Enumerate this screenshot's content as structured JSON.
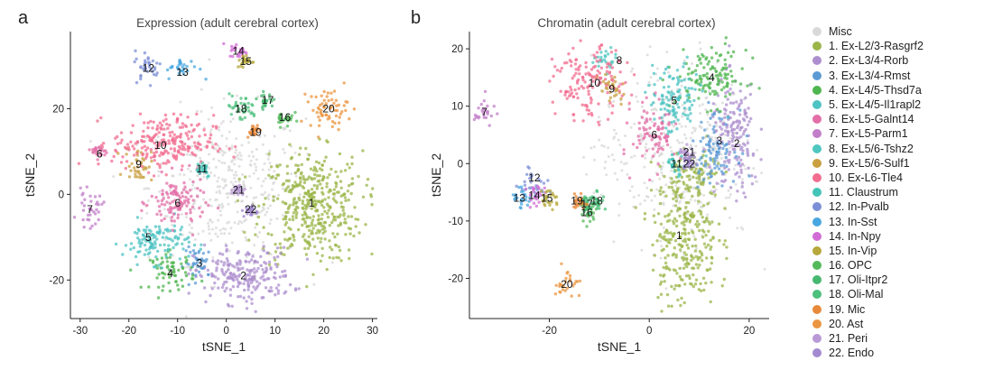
{
  "panels": [
    {
      "letter": "a",
      "title": "Expression (adult cerebral cortex)"
    },
    {
      "letter": "b",
      "title": "Chromatin (adult cerebral cortex)"
    }
  ],
  "legend": [
    {
      "label": "Misc",
      "color": "#d9d9d9"
    },
    {
      "label": "1. Ex-L2/3-Rasgrf2",
      "color": "#9bb548"
    },
    {
      "label": "2. Ex-L3/4-Rorb",
      "color": "#ad8fcf"
    },
    {
      "label": "3. Ex-L3/4-Rmst",
      "color": "#5b9bd5"
    },
    {
      "label": "4. Ex-L4/5-Thsd7a",
      "color": "#4fb64f"
    },
    {
      "label": "5. Ex-L4/5-Il1rapl2",
      "color": "#4dc3c3"
    },
    {
      "label": "6. Ex-L5-Galnt14",
      "color": "#e36fa7"
    },
    {
      "label": "7. Ex-L5-Parm1",
      "color": "#c27ec9"
    },
    {
      "label": "8. Ex-L5/6-Tshz2",
      "color": "#4fc7c0"
    },
    {
      "label": "9. Ex-L5/6-Sulf1",
      "color": "#c9a040"
    },
    {
      "label": "10. Ex-L6-Tle4",
      "color": "#f26d90"
    },
    {
      "label": "11. Claustrum",
      "color": "#43c4b8"
    },
    {
      "label": "12. In-Pvalb",
      "color": "#7c8fd6"
    },
    {
      "label": "13. In-Sst",
      "color": "#48a7e0"
    },
    {
      "label": "14. In-Npy",
      "color": "#d16cd6"
    },
    {
      "label": "15. In-Vip",
      "color": "#b6a83b"
    },
    {
      "label": "16. OPC",
      "color": "#53b95a"
    },
    {
      "label": "17. Oli-Itpr2",
      "color": "#46b870"
    },
    {
      "label": "18. Oli-Mal",
      "color": "#4cc07c"
    },
    {
      "label": "19. Mic",
      "color": "#e8893a"
    },
    {
      "label": "20. Ast",
      "color": "#eb9640"
    },
    {
      "label": "21. Peri",
      "color": "#b99ad6"
    },
    {
      "label": "22. Endo",
      "color": "#a38ad0"
    }
  ],
  "chart_data": [
    {
      "type": "scatter",
      "title": "Expression (adult cerebral cortex)",
      "xlabel": "tSNE_1",
      "ylabel": "tSNE_2",
      "xlim": [
        -32,
        31
      ],
      "ylim": [
        -29,
        38
      ],
      "xticks": [
        -30,
        -20,
        -10,
        0,
        10,
        20,
        30
      ],
      "yticks": [
        -20,
        0,
        20
      ],
      "misc_cloud": {
        "x": 0,
        "y": 2,
        "sx": 8,
        "sy": 9
      },
      "clusters": [
        {
          "id": "1",
          "x": 17.5,
          "y": -3,
          "sx": 5.2,
          "sy": 6.5
        },
        {
          "id": "2",
          "x": 3.5,
          "y": -19,
          "sx": 5.0,
          "sy": 3.2
        },
        {
          "id": "3",
          "x": -5.5,
          "y": -16,
          "sx": 1.6,
          "sy": 1.8
        },
        {
          "id": "4",
          "x": -11,
          "y": -18,
          "sx": 2.3,
          "sy": 2.1
        },
        {
          "id": "5",
          "x": -14.5,
          "y": -11,
          "sx": 3.4,
          "sy": 2.5
        },
        {
          "id": "6",
          "x": -10,
          "y": -2,
          "sx": 2.8,
          "sy": 3.0
        },
        {
          "id": "7",
          "x": -28,
          "y": -3.5,
          "sx": 1.3,
          "sy": 2.0
        },
        {
          "id": "9",
          "x": -18,
          "y": 7,
          "sx": 1.4,
          "sy": 2.0
        },
        {
          "id": "10",
          "x": -13,
          "y": 12,
          "sx": 5.2,
          "sy": 3.2
        },
        {
          "id": "6b",
          "x": -26,
          "y": 10,
          "sx": 0.8,
          "sy": 0.8
        },
        {
          "id": "11",
          "x": -5,
          "y": 6,
          "sx": 1.0,
          "sy": 1.0
        },
        {
          "id": "12",
          "x": -16,
          "y": 30,
          "sx": 1.4,
          "sy": 1.8
        },
        {
          "id": "13",
          "x": -9,
          "y": 29.5,
          "sx": 1.7,
          "sy": 1.2
        },
        {
          "id": "14",
          "x": 2.5,
          "y": 33.5,
          "sx": 0.9,
          "sy": 0.8
        },
        {
          "id": "15",
          "x": 4,
          "y": 31,
          "sx": 0.9,
          "sy": 0.8
        },
        {
          "id": "16",
          "x": 12,
          "y": 18,
          "sx": 0.9,
          "sy": 1.1
        },
        {
          "id": "17",
          "x": 8,
          "y": 22,
          "sx": 0.8,
          "sy": 0.8
        },
        {
          "id": "18",
          "x": 3,
          "y": 20,
          "sx": 1.7,
          "sy": 1.6
        },
        {
          "id": "19",
          "x": 5.5,
          "y": 15,
          "sx": 0.7,
          "sy": 0.7
        },
        {
          "id": "20",
          "x": 21,
          "y": 20,
          "sx": 2.0,
          "sy": 2.2
        },
        {
          "id": "21",
          "x": 2.5,
          "y": 1,
          "sx": 0.7,
          "sy": 0.7
        },
        {
          "id": "22",
          "x": 5,
          "y": -4,
          "sx": 0.7,
          "sy": 0.7
        }
      ],
      "labels": [
        {
          "text": "1",
          "x": 17.5,
          "y": -2
        },
        {
          "text": "2",
          "x": 3.5,
          "y": -19
        },
        {
          "text": "3",
          "x": -5.5,
          "y": -16
        },
        {
          "text": "4",
          "x": -11.5,
          "y": -18.5
        },
        {
          "text": "5",
          "x": -16,
          "y": -10
        },
        {
          "text": "6",
          "x": -10,
          "y": -2
        },
        {
          "text": "6",
          "x": -26,
          "y": 9.5
        },
        {
          "text": "7",
          "x": -28,
          "y": -3.5
        },
        {
          "text": "9",
          "x": -18,
          "y": 7
        },
        {
          "text": "10",
          "x": -13.5,
          "y": 11.5
        },
        {
          "text": "11",
          "x": -5,
          "y": 6
        },
        {
          "text": "12",
          "x": -16,
          "y": 29.5
        },
        {
          "text": "13",
          "x": -9,
          "y": 28.5
        },
        {
          "text": "14",
          "x": 2.5,
          "y": 33.5
        },
        {
          "text": "15",
          "x": 4,
          "y": 31
        },
        {
          "text": "16",
          "x": 12,
          "y": 18
        },
        {
          "text": "17",
          "x": 8.5,
          "y": 22
        },
        {
          "text": "18",
          "x": 3,
          "y": 20
        },
        {
          "text": "19",
          "x": 6,
          "y": 14.5
        },
        {
          "text": "20",
          "x": 21,
          "y": 20
        },
        {
          "text": "21",
          "x": 2.5,
          "y": 1
        },
        {
          "text": "22",
          "x": 5,
          "y": -3.5
        }
      ]
    },
    {
      "type": "scatter",
      "title": "Chromatin (adult cerebral cortex)",
      "xlabel": "tSNE_1",
      "ylabel": "tSNE_2",
      "xlim": [
        -36,
        24
      ],
      "ylim": [
        -27,
        23
      ],
      "xticks": [
        -20,
        0,
        20
      ],
      "yticks": [
        -20,
        -10,
        0,
        10,
        20
      ],
      "misc_cloud": {
        "x": 5,
        "y": 2,
        "sx": 8,
        "sy": 8
      },
      "clusters": [
        {
          "id": "1",
          "x": 7,
          "y": -13,
          "sx": 3.3,
          "sy": 6.0
        },
        {
          "id": "1b",
          "x": 9.5,
          "y": -2,
          "sx": 2.5,
          "sy": 2.5
        },
        {
          "id": "2",
          "x": 17,
          "y": 4,
          "sx": 2.4,
          "sy": 5.0
        },
        {
          "id": "3",
          "x": 13,
          "y": 3,
          "sx": 2.2,
          "sy": 3.0
        },
        {
          "id": "4",
          "x": 12.5,
          "y": 15,
          "sx": 3.5,
          "sy": 2.5
        },
        {
          "id": "5",
          "x": 5,
          "y": 11,
          "sx": 2.5,
          "sy": 3.2
        },
        {
          "id": "6",
          "x": 1,
          "y": 5,
          "sx": 2.2,
          "sy": 2.8
        },
        {
          "id": "7",
          "x": -33,
          "y": 9,
          "sx": 1.0,
          "sy": 1.3
        },
        {
          "id": "8",
          "x": -9,
          "y": 18,
          "sx": 1.2,
          "sy": 1.0
        },
        {
          "id": "9",
          "x": -7.5,
          "y": 13,
          "sx": 1.4,
          "sy": 1.6
        },
        {
          "id": "10",
          "x": -12,
          "y": 14,
          "sx": 3.5,
          "sy": 3.0
        },
        {
          "id": "11",
          "x": 5,
          "y": 0,
          "sx": 1.0,
          "sy": 1.0
        },
        {
          "id": "12",
          "x": -23,
          "y": -3,
          "sx": 1.4,
          "sy": 1.4
        },
        {
          "id": "13",
          "x": -25.5,
          "y": -6,
          "sx": 1.1,
          "sy": 1.0
        },
        {
          "id": "14",
          "x": -22.5,
          "y": -5.5,
          "sx": 1.0,
          "sy": 0.9
        },
        {
          "id": "15",
          "x": -20,
          "y": -6,
          "sx": 1.0,
          "sy": 0.9
        },
        {
          "id": "16",
          "x": -12,
          "y": -8.5,
          "sx": 0.8,
          "sy": 0.9
        },
        {
          "id": "17",
          "x": -12.5,
          "y": -7,
          "sx": 0.7,
          "sy": 0.7
        },
        {
          "id": "18",
          "x": -10.5,
          "y": -6.5,
          "sx": 0.8,
          "sy": 0.9
        },
        {
          "id": "19",
          "x": -14,
          "y": -6.5,
          "sx": 0.7,
          "sy": 0.7
        },
        {
          "id": "20",
          "x": -16.5,
          "y": -21,
          "sx": 1.3,
          "sy": 1.5
        },
        {
          "id": "21",
          "x": 7.5,
          "y": 2,
          "sx": 0.7,
          "sy": 0.7
        },
        {
          "id": "22",
          "x": 8,
          "y": 0,
          "sx": 0.7,
          "sy": 0.7
        }
      ],
      "labels": [
        {
          "text": "1",
          "x": 6,
          "y": -12.5
        },
        {
          "text": "2",
          "x": 17.5,
          "y": 3.5
        },
        {
          "text": "3",
          "x": 14,
          "y": 4
        },
        {
          "text": "4",
          "x": 12.5,
          "y": 15
        },
        {
          "text": "5",
          "x": 5,
          "y": 11
        },
        {
          "text": "6",
          "x": 1,
          "y": 5
        },
        {
          "text": "7",
          "x": -33,
          "y": 9
        },
        {
          "text": "8",
          "x": -6,
          "y": 18
        },
        {
          "text": "9",
          "x": -7.5,
          "y": 13
        },
        {
          "text": "10",
          "x": -11,
          "y": 14
        },
        {
          "text": "11",
          "x": 5.5,
          "y": 0
        },
        {
          "text": "12",
          "x": -23,
          "y": -2.5
        },
        {
          "text": "13",
          "x": -26,
          "y": -6
        },
        {
          "text": "14",
          "x": -23,
          "y": -5.5
        },
        {
          "text": "15",
          "x": -20.5,
          "y": -6
        },
        {
          "text": "16",
          "x": -12.5,
          "y": -8.5
        },
        {
          "text": "17",
          "x": -12.5,
          "y": -7
        },
        {
          "text": "18",
          "x": -10.5,
          "y": -6.5
        },
        {
          "text": "19",
          "x": -14.5,
          "y": -6.5
        },
        {
          "text": "20",
          "x": -16.5,
          "y": -21
        },
        {
          "text": "21",
          "x": 8,
          "y": 2
        },
        {
          "text": "22",
          "x": 8,
          "y": 0
        }
      ]
    }
  ]
}
